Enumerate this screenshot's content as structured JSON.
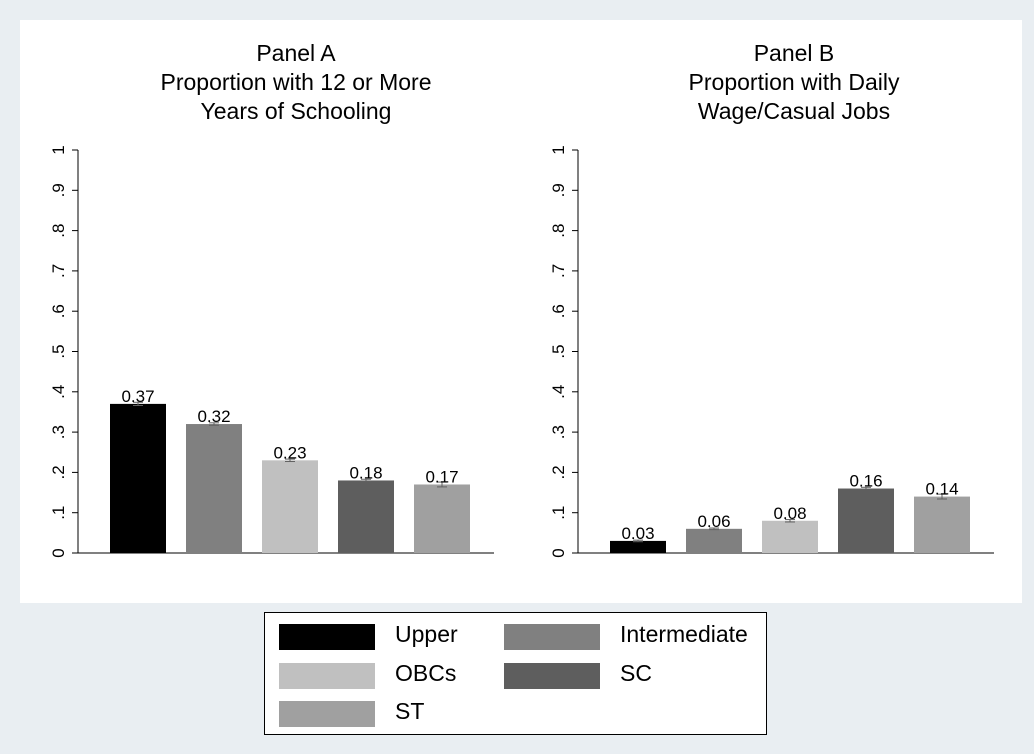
{
  "chart_data": [
    {
      "type": "bar",
      "title": [
        "Panel A",
        "Proportion with 12 or More",
        "Years of Schooling"
      ],
      "categories": [
        "Upper",
        "Intermediate",
        "OBCs",
        "SC",
        "ST"
      ],
      "values": [
        0.37,
        0.32,
        0.23,
        0.18,
        0.17
      ],
      "value_labels": [
        "0.37",
        "0.32",
        "0.23",
        "0.18",
        "0.17"
      ],
      "error_half_width": [
        0.004,
        0.003,
        0.003,
        0.003,
        0.006
      ],
      "ylim": [
        0,
        1
      ],
      "yticks": [
        0,
        0.1,
        0.2,
        0.3,
        0.4,
        0.5,
        0.6,
        0.7,
        0.8,
        0.9,
        1
      ],
      "ytick_labels": [
        "0",
        ".1",
        ".2",
        ".3",
        ".4",
        ".5",
        ".6",
        ".7",
        ".8",
        ".9",
        "1"
      ],
      "grid": false
    },
    {
      "type": "bar",
      "title": [
        "Panel B",
        "Proportion with Daily",
        "Wage/Casual Jobs"
      ],
      "categories": [
        "Upper",
        "Intermediate",
        "OBCs",
        "SC",
        "ST"
      ],
      "values": [
        0.03,
        0.06,
        0.08,
        0.16,
        0.14
      ],
      "value_labels": [
        "0.03",
        "0.06",
        "0.08",
        "0.16",
        "0.14"
      ],
      "error_half_width": [
        0.002,
        0.002,
        0.003,
        0.003,
        0.006
      ],
      "ylim": [
        0,
        1
      ],
      "yticks": [
        0,
        0.1,
        0.2,
        0.3,
        0.4,
        0.5,
        0.6,
        0.7,
        0.8,
        0.9,
        1
      ],
      "ytick_labels": [
        "0",
        ".1",
        ".2",
        ".3",
        ".4",
        ".5",
        ".6",
        ".7",
        ".8",
        ".9",
        "1"
      ],
      "grid": false
    }
  ],
  "legend": {
    "placement": "bottom-center",
    "items": [
      {
        "label": "Upper",
        "color": "#000000"
      },
      {
        "label": "Intermediate",
        "color": "#808080"
      },
      {
        "label": "OBCs",
        "color": "#c0c0c0"
      },
      {
        "label": "SC",
        "color": "#5e5e5e"
      },
      {
        "label": "ST",
        "color": "#a0a0a0"
      }
    ]
  },
  "colors": {
    "background": "#e9eef2",
    "plot_background": "#ffffff",
    "error_bar": "#606060"
  }
}
